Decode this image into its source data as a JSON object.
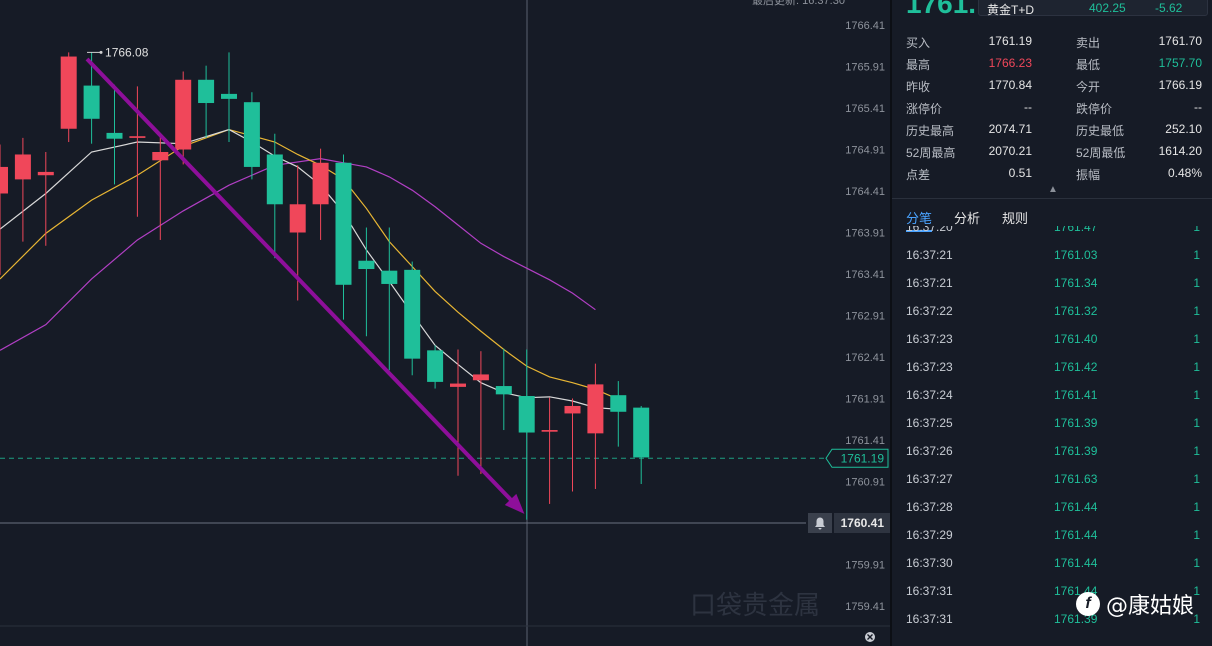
{
  "header": {
    "last_update_text": "最后更新: 16:37:30",
    "big_price": "1761.",
    "instrument": "黄金T+D",
    "instrument_price": "402.25",
    "instrument_change": "-5.62"
  },
  "stats": [
    {
      "k1": "买入",
      "v1": "1761.19",
      "v1_color": "",
      "k2": "卖出",
      "v2": "1761.70",
      "v2_color": ""
    },
    {
      "k1": "最高",
      "v1": "1766.23",
      "v1_color": "red",
      "k2": "最低",
      "v2": "1757.70",
      "v2_color": "green"
    },
    {
      "k1": "昨收",
      "v1": "1770.84",
      "v1_color": "",
      "k2": "今开",
      "v2": "1766.19",
      "v2_color": ""
    },
    {
      "k1": "涨停价",
      "v1": "--",
      "v1_color": "",
      "k2": "跌停价",
      "v2": "--",
      "v2_color": ""
    },
    {
      "k1": "历史最高",
      "v1": "2074.71",
      "v1_color": "",
      "k2": "历史最低",
      "v2": "252.10",
      "v2_color": ""
    },
    {
      "k1": "52周最高",
      "v1": "2070.21",
      "v1_color": "",
      "k2": "52周最低",
      "v2": "1614.20",
      "v2_color": ""
    },
    {
      "k1": "点差",
      "v1": "0.51",
      "v1_color": "",
      "k2": "振幅",
      "v2": "0.48%",
      "v2_color": ""
    }
  ],
  "tabs": [
    {
      "label": "分笔",
      "active": true
    },
    {
      "label": "分析",
      "active": false
    },
    {
      "label": "规则",
      "active": false
    }
  ],
  "ticks": [
    {
      "time": "16:37:20",
      "price": "1761.47",
      "qty": "1"
    },
    {
      "time": "16:37:21",
      "price": "1761.03",
      "qty": "1"
    },
    {
      "time": "16:37:21",
      "price": "1761.34",
      "qty": "1"
    },
    {
      "time": "16:37:22",
      "price": "1761.32",
      "qty": "1"
    },
    {
      "time": "16:37:23",
      "price": "1761.40",
      "qty": "1"
    },
    {
      "time": "16:37:23",
      "price": "1761.42",
      "qty": "1"
    },
    {
      "time": "16:37:24",
      "price": "1761.41",
      "qty": "1"
    },
    {
      "time": "16:37:25",
      "price": "1761.39",
      "qty": "1"
    },
    {
      "time": "16:37:26",
      "price": "1761.39",
      "qty": "1"
    },
    {
      "time": "16:37:27",
      "price": "1761.63",
      "qty": "1"
    },
    {
      "time": "16:37:28",
      "price": "1761.44",
      "qty": "1"
    },
    {
      "time": "16:37:29",
      "price": "1761.44",
      "qty": "1"
    },
    {
      "time": "16:37:30",
      "price": "1761.44",
      "qty": "1"
    },
    {
      "time": "16:37:31",
      "price": "1761.44",
      "qty": "1"
    },
    {
      "time": "16:37:31",
      "price": "1761.39",
      "qty": "1"
    }
  ],
  "watermark": {
    "brand": "口袋贵金属",
    "author": "@康姑娘"
  },
  "colors": {
    "up": "#f0475a",
    "down": "#1fbf9a",
    "ma_white": "#d9d9d9",
    "ma_yellow": "#e8b634",
    "ma_purple": "#b13fc4",
    "arrow": "#8e0f9a",
    "bg": "#161b26"
  },
  "chart_data": {
    "type": "candlestick",
    "y_ticks": [
      "1766.41",
      "1765.91",
      "1765.41",
      "1764.91",
      "1764.41",
      "1763.91",
      "1763.41",
      "1762.91",
      "1762.41",
      "1761.91",
      "1761.41",
      "1760.91",
      "1759.91",
      "1759.41"
    ],
    "ylim": [
      1759.2,
      1766.7
    ],
    "high_marker": "1766.08",
    "last_price": 1761.19,
    "last_price_label": "1761.19",
    "crosshair_price": 1760.41,
    "crosshair_label": "1760.41",
    "candles": [
      {
        "o": 1764.38,
        "c": 1764.7,
        "h": 1764.97,
        "l": 1763.4
      },
      {
        "o": 1764.55,
        "c": 1764.85,
        "h": 1765.05,
        "l": 1763.8
      },
      {
        "o": 1764.6,
        "c": 1764.64,
        "h": 1764.88,
        "l": 1763.75
      },
      {
        "o": 1765.16,
        "c": 1766.03,
        "h": 1766.08,
        "l": 1765.0
      },
      {
        "o": 1765.68,
        "c": 1765.28,
        "h": 1766.08,
        "l": 1764.98
      },
      {
        "o": 1765.11,
        "c": 1765.04,
        "h": 1765.69,
        "l": 1764.49
      },
      {
        "o": 1765.05,
        "c": 1765.07,
        "h": 1765.67,
        "l": 1764.1
      },
      {
        "o": 1764.78,
        "c": 1764.88,
        "h": 1765.07,
        "l": 1763.82
      },
      {
        "o": 1764.91,
        "c": 1765.75,
        "h": 1765.85,
        "l": 1764.73
      },
      {
        "o": 1765.75,
        "c": 1765.47,
        "h": 1765.92,
        "l": 1765.05
      },
      {
        "o": 1765.58,
        "c": 1765.52,
        "h": 1766.08,
        "l": 1765.0
      },
      {
        "o": 1765.48,
        "c": 1764.7,
        "h": 1765.6,
        "l": 1764.55
      },
      {
        "o": 1764.85,
        "c": 1764.25,
        "h": 1765.1,
        "l": 1763.6
      },
      {
        "o": 1763.91,
        "c": 1764.25,
        "h": 1764.72,
        "l": 1763.09
      },
      {
        "o": 1764.25,
        "c": 1764.75,
        "h": 1764.92,
        "l": 1763.82
      },
      {
        "o": 1764.75,
        "c": 1763.28,
        "h": 1764.85,
        "l": 1762.86
      },
      {
        "o": 1763.57,
        "c": 1763.47,
        "h": 1763.97,
        "l": 1762.66
      },
      {
        "o": 1763.45,
        "c": 1763.29,
        "h": 1763.97,
        "l": 1762.25
      },
      {
        "o": 1763.46,
        "c": 1762.39,
        "h": 1763.56,
        "l": 1762.19
      },
      {
        "o": 1762.49,
        "c": 1762.11,
        "h": 1762.55,
        "l": 1762.03
      },
      {
        "o": 1762.05,
        "c": 1762.09,
        "h": 1762.5,
        "l": 1760.98
      },
      {
        "o": 1762.13,
        "c": 1762.2,
        "h": 1762.48,
        "l": 1761.0
      },
      {
        "o": 1762.06,
        "c": 1761.96,
        "h": 1762.51,
        "l": 1761.53
      },
      {
        "o": 1761.94,
        "c": 1761.5,
        "h": 1762.5,
        "l": 1760.45
      },
      {
        "o": 1761.51,
        "c": 1761.53,
        "h": 1761.92,
        "l": 1760.64
      },
      {
        "o": 1761.73,
        "c": 1761.82,
        "h": 1761.91,
        "l": 1760.79
      },
      {
        "o": 1761.49,
        "c": 1762.08,
        "h": 1762.33,
        "l": 1760.82
      },
      {
        "o": 1761.95,
        "c": 1761.75,
        "h": 1762.12,
        "l": 1761.33
      },
      {
        "o": 1761.8,
        "c": 1761.2,
        "h": 1761.82,
        "l": 1760.88
      }
    ],
    "ma_white": [
      [
        0,
        1763.95
      ],
      [
        2,
        1764.38
      ],
      [
        4,
        1764.88
      ],
      [
        6,
        1765.0
      ],
      [
        8,
        1764.98
      ],
      [
        10,
        1765.15
      ],
      [
        11,
        1765.0
      ],
      [
        12,
        1764.83
      ],
      [
        13,
        1764.7
      ],
      [
        14,
        1764.48
      ],
      [
        15,
        1764.15
      ],
      [
        16,
        1763.7
      ],
      [
        17,
        1763.32
      ],
      [
        18,
        1762.93
      ],
      [
        19,
        1762.55
      ],
      [
        20,
        1762.32
      ],
      [
        21,
        1762.1
      ],
      [
        22,
        1761.98
      ],
      [
        23,
        1761.92
      ],
      [
        24,
        1761.93
      ],
      [
        25,
        1761.88
      ],
      [
        26,
        1761.8
      ],
      [
        27,
        1761.78
      ]
    ],
    "ma_yellow": [
      [
        0,
        1763.35
      ],
      [
        2,
        1763.9
      ],
      [
        4,
        1764.3
      ],
      [
        6,
        1764.6
      ],
      [
        8,
        1764.95
      ],
      [
        10,
        1765.15
      ],
      [
        12,
        1765.0
      ],
      [
        13,
        1764.85
      ],
      [
        14,
        1764.72
      ],
      [
        15,
        1764.55
      ],
      [
        16,
        1764.2
      ],
      [
        17,
        1763.8
      ],
      [
        18,
        1763.5
      ],
      [
        19,
        1763.2
      ],
      [
        20,
        1762.95
      ],
      [
        21,
        1762.72
      ],
      [
        22,
        1762.5
      ],
      [
        23,
        1762.3
      ],
      [
        24,
        1762.17
      ],
      [
        25,
        1762.1
      ],
      [
        26,
        1762.02
      ],
      [
        27,
        1761.9
      ]
    ],
    "ma_purple": [
      [
        0,
        1762.49
      ],
      [
        2,
        1762.8
      ],
      [
        4,
        1763.35
      ],
      [
        6,
        1763.82
      ],
      [
        8,
        1764.17
      ],
      [
        10,
        1764.48
      ],
      [
        12,
        1764.72
      ],
      [
        14,
        1764.8
      ],
      [
        15,
        1764.75
      ],
      [
        16,
        1764.7
      ],
      [
        17,
        1764.58
      ],
      [
        18,
        1764.42
      ],
      [
        19,
        1764.22
      ],
      [
        20,
        1764.0
      ],
      [
        21,
        1763.78
      ],
      [
        22,
        1763.62
      ],
      [
        23,
        1763.48
      ],
      [
        24,
        1763.34
      ],
      [
        25,
        1763.18
      ],
      [
        26,
        1762.98
      ]
    ],
    "trend_arrow": {
      "from": [
        3.8,
        1766.0
      ],
      "to": [
        22.9,
        1760.52
      ]
    }
  }
}
